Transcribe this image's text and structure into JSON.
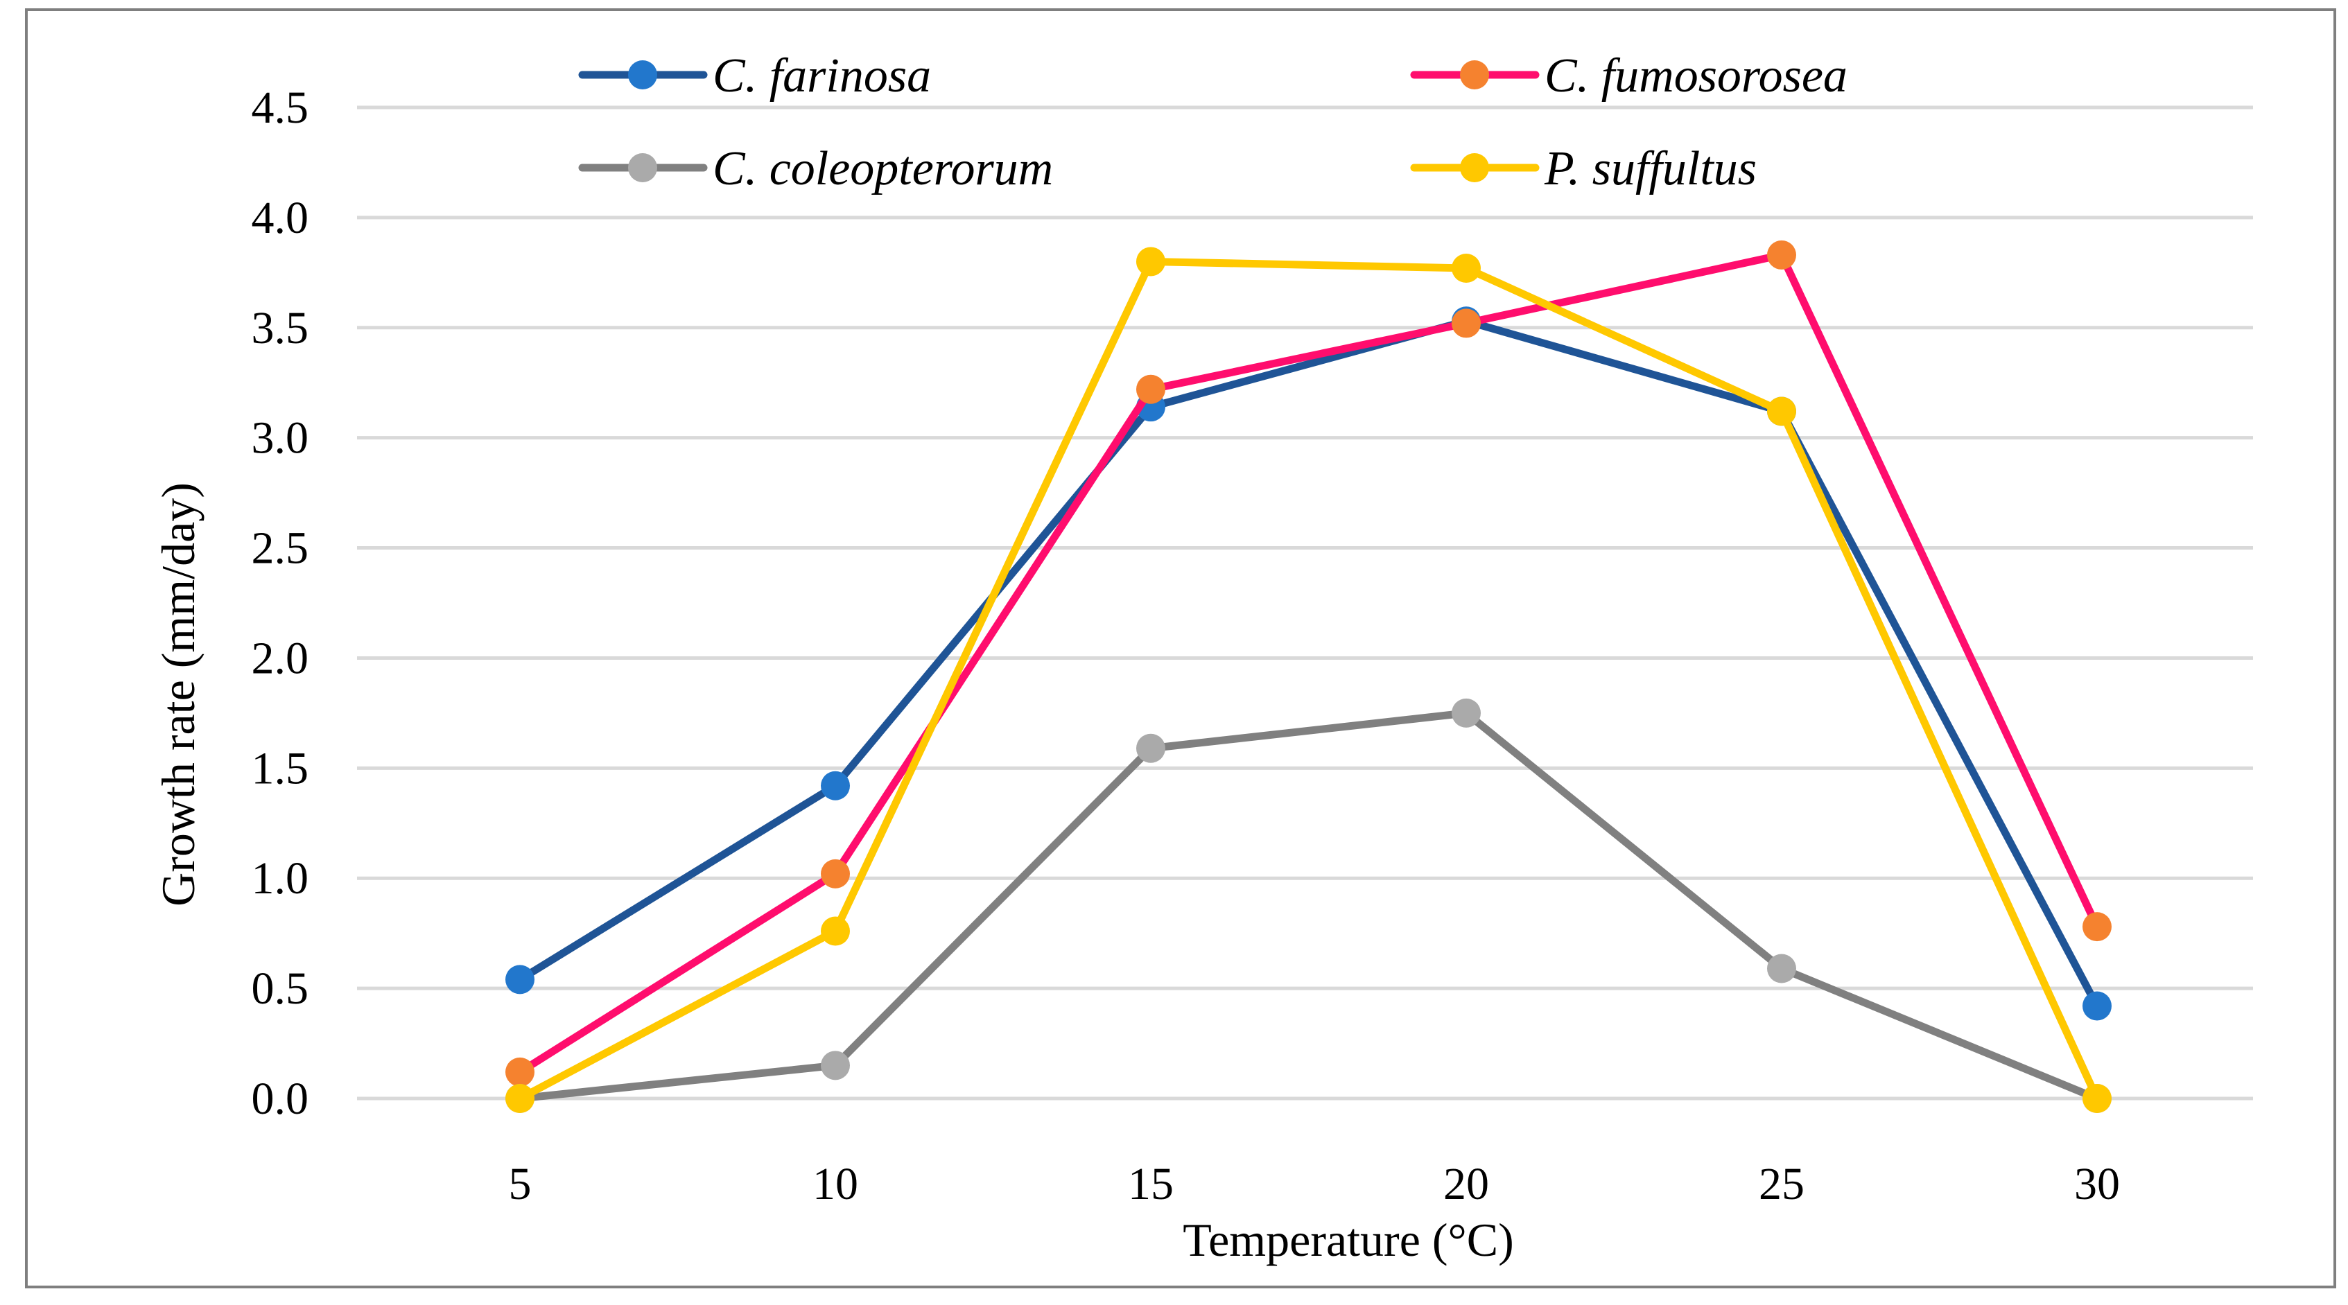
{
  "chart_data": {
    "type": "line",
    "title": "",
    "xlabel": "Temperature (°C)",
    "ylabel": "Growth rate (mm/day)",
    "x": [
      5,
      10,
      15,
      20,
      25,
      30
    ],
    "x_tick_labels": [
      "5",
      "10",
      "15",
      "20",
      "25",
      "30"
    ],
    "ylim": [
      0,
      4.5
    ],
    "y_ticks": [
      0,
      0.5,
      1.0,
      1.5,
      2.0,
      2.5,
      3.0,
      3.5,
      4.0,
      4.5
    ],
    "y_tick_labels": [
      "0.0",
      "0.5",
      "1.0",
      "1.5",
      "2.0",
      "2.5",
      "3.0",
      "3.5",
      "4.0",
      "4.5"
    ],
    "grid": true,
    "legend_position": "top",
    "series": [
      {
        "name": "C. farinosa",
        "line_color": "#1f5496",
        "marker_color": "#2277cc",
        "values": [
          0.54,
          1.42,
          3.14,
          3.53,
          3.12,
          0.42
        ]
      },
      {
        "name": "C. fumosorosea",
        "line_color": "#ff0d6d",
        "marker_color": "#f5822f",
        "values": [
          0.12,
          1.02,
          3.22,
          3.52,
          3.83,
          0.78
        ]
      },
      {
        "name": "C. coleopterorum",
        "line_color": "#808080",
        "marker_color": "#aaaaaa",
        "values": [
          0.0,
          0.15,
          1.59,
          1.75,
          0.59,
          0.0
        ]
      },
      {
        "name": "P. suffultus",
        "line_color": "#ffc800",
        "marker_color": "#ffc800",
        "values": [
          0.0,
          0.76,
          3.8,
          3.77,
          3.12,
          0.0
        ]
      }
    ]
  }
}
